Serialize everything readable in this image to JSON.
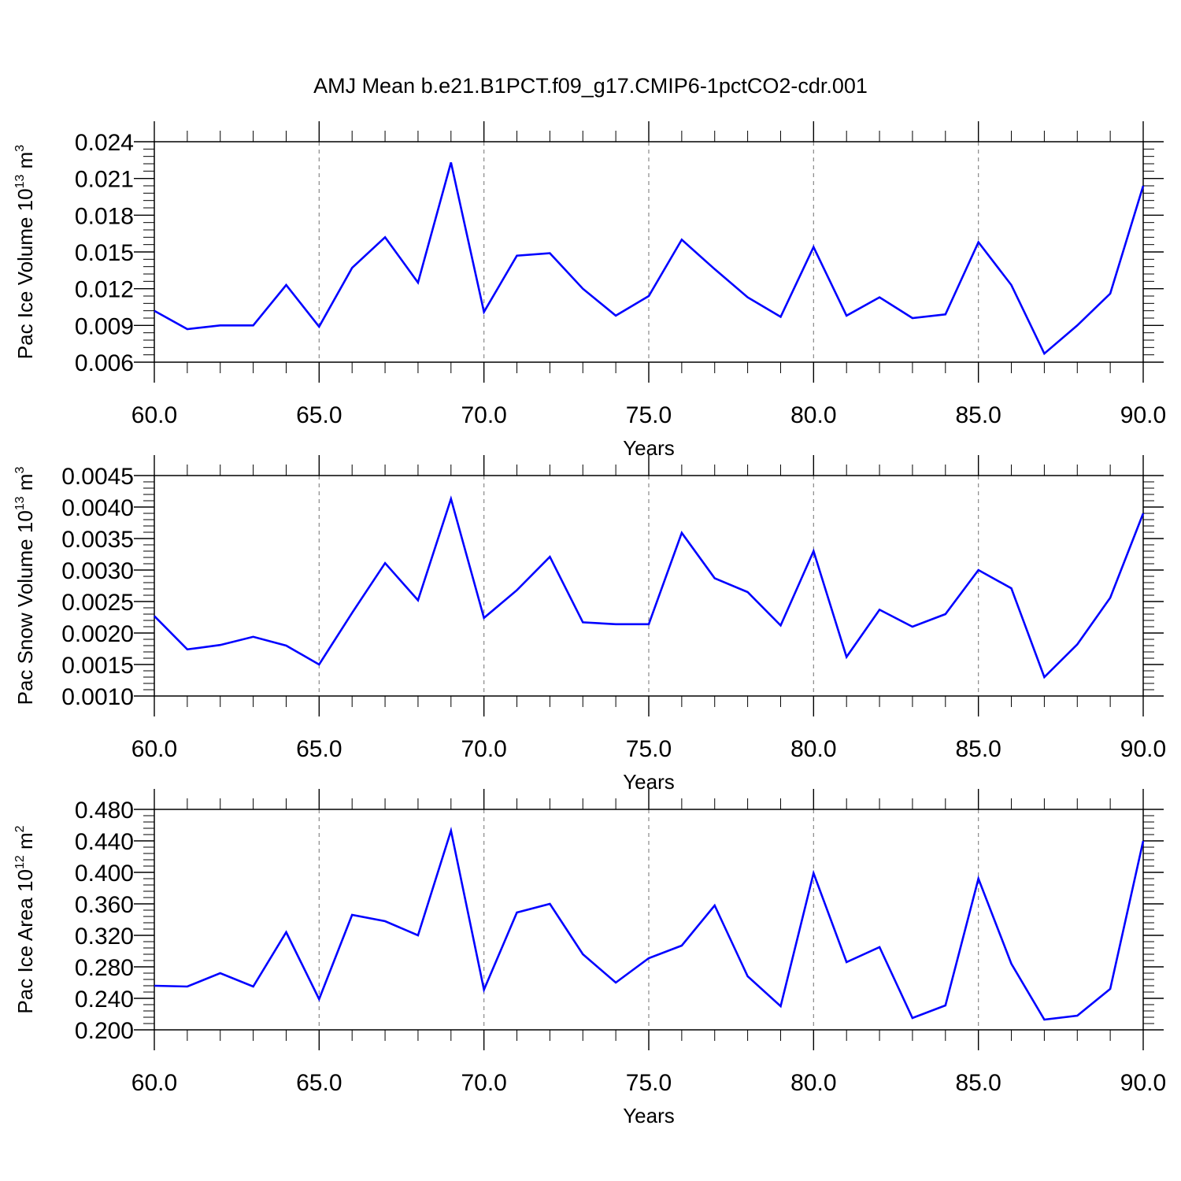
{
  "figure": {
    "title": "AMJ Mean b.e21.B1PCT.f09_g17.CMIP6-1pctCO2-cdr.001"
  },
  "line_color": "#0000ff",
  "chart_data": [
    {
      "type": "line",
      "ylabel": "Pac Ice Volume 10",
      "ylabel_exp": "13",
      "ylabel_unit": " m",
      "ylabel_unit_exp": "3",
      "xlabel": "Years",
      "xlim": [
        60,
        90
      ],
      "ylim": [
        0.006,
        0.024
      ],
      "yticks": [
        0.006,
        0.009,
        0.012,
        0.015,
        0.018,
        0.021,
        0.024
      ],
      "ytick_labels": [
        "0.006",
        "0.009",
        "0.012",
        "0.015",
        "0.018",
        "0.021",
        "0.024"
      ],
      "xticks": [
        60,
        65,
        70,
        75,
        80,
        85,
        90
      ],
      "xtick_labels": [
        "60.0",
        "65.0",
        "70.0",
        "75.0",
        "80.0",
        "85.0",
        "90.0"
      ],
      "grid_x": [
        65,
        70,
        75,
        80,
        85
      ],
      "x": [
        60,
        61,
        62,
        63,
        64,
        65,
        66,
        67,
        68,
        69,
        70,
        71,
        72,
        73,
        74,
        75,
        76,
        77,
        78,
        79,
        80,
        81,
        82,
        83,
        84,
        85,
        86,
        87,
        88,
        89,
        90
      ],
      "series": [
        {
          "values": [
            0.0102,
            0.0087,
            0.009,
            0.009,
            0.0123,
            0.0089,
            0.0137,
            0.0162,
            0.0125,
            0.0223,
            0.0101,
            0.0147,
            0.0149,
            0.012,
            0.0098,
            0.0114,
            0.016,
            0.0136,
            0.0113,
            0.0097,
            0.0154,
            0.0098,
            0.0113,
            0.0096,
            0.0099,
            0.0158,
            0.0123,
            0.0067,
            0.009,
            0.0116,
            0.0204
          ]
        }
      ]
    },
    {
      "type": "line",
      "ylabel": "Pac Snow Volume 10",
      "ylabel_exp": "13",
      "ylabel_unit": " m",
      "ylabel_unit_exp": "3",
      "xlabel": "Years",
      "xlim": [
        60,
        90
      ],
      "ylim": [
        0.001,
        0.0045
      ],
      "yticks": [
        0.001,
        0.0015,
        0.002,
        0.0025,
        0.003,
        0.0035,
        0.004,
        0.0045
      ],
      "ytick_labels": [
        "0.0010",
        "0.0015",
        "0.0020",
        "0.0025",
        "0.0030",
        "0.0035",
        "0.0040",
        "0.0045"
      ],
      "xticks": [
        60,
        65,
        70,
        75,
        80,
        85,
        90
      ],
      "xtick_labels": [
        "60.0",
        "65.0",
        "70.0",
        "75.0",
        "80.0",
        "85.0",
        "90.0"
      ],
      "grid_x": [
        65,
        70,
        75,
        80,
        85
      ],
      "x": [
        60,
        61,
        62,
        63,
        64,
        65,
        66,
        67,
        68,
        69,
        70,
        71,
        72,
        73,
        74,
        75,
        76,
        77,
        78,
        79,
        80,
        81,
        82,
        83,
        84,
        85,
        86,
        87,
        88,
        89,
        90
      ],
      "series": [
        {
          "values": [
            0.00227,
            0.00174,
            0.00181,
            0.00194,
            0.0018,
            0.0015,
            0.00232,
            0.00311,
            0.00252,
            0.00413,
            0.00224,
            0.00268,
            0.00321,
            0.00217,
            0.00214,
            0.00214,
            0.00359,
            0.00287,
            0.00265,
            0.00212,
            0.0033,
            0.00162,
            0.00237,
            0.0021,
            0.0023,
            0.003,
            0.00271,
            0.0013,
            0.00182,
            0.00256,
            0.0039
          ]
        }
      ]
    },
    {
      "type": "line",
      "ylabel": "Pac Ice Area 10",
      "ylabel_exp": "12",
      "ylabel_unit": " m",
      "ylabel_unit_exp": "2",
      "xlabel": "Years",
      "xlim": [
        60,
        90
      ],
      "ylim": [
        0.2,
        0.48
      ],
      "yticks": [
        0.2,
        0.24,
        0.28,
        0.32,
        0.36,
        0.4,
        0.44,
        0.48
      ],
      "ytick_labels": [
        "0.200",
        "0.240",
        "0.280",
        "0.320",
        "0.360",
        "0.400",
        "0.440",
        "0.480"
      ],
      "xticks": [
        60,
        65,
        70,
        75,
        80,
        85,
        90
      ],
      "xtick_labels": [
        "60.0",
        "65.0",
        "70.0",
        "75.0",
        "80.0",
        "85.0",
        "90.0"
      ],
      "grid_x": [
        65,
        70,
        75,
        80,
        85
      ],
      "x": [
        60,
        61,
        62,
        63,
        64,
        65,
        66,
        67,
        68,
        69,
        70,
        71,
        72,
        73,
        74,
        75,
        76,
        77,
        78,
        79,
        80,
        81,
        82,
        83,
        84,
        85,
        86,
        87,
        88,
        89,
        90
      ],
      "series": [
        {
          "values": [
            0.256,
            0.255,
            0.272,
            0.255,
            0.324,
            0.239,
            0.346,
            0.338,
            0.32,
            0.453,
            0.251,
            0.349,
            0.36,
            0.296,
            0.26,
            0.291,
            0.307,
            0.358,
            0.268,
            0.23,
            0.399,
            0.286,
            0.305,
            0.215,
            0.231,
            0.392,
            0.284,
            0.213,
            0.218,
            0.252,
            0.44
          ]
        }
      ]
    }
  ]
}
